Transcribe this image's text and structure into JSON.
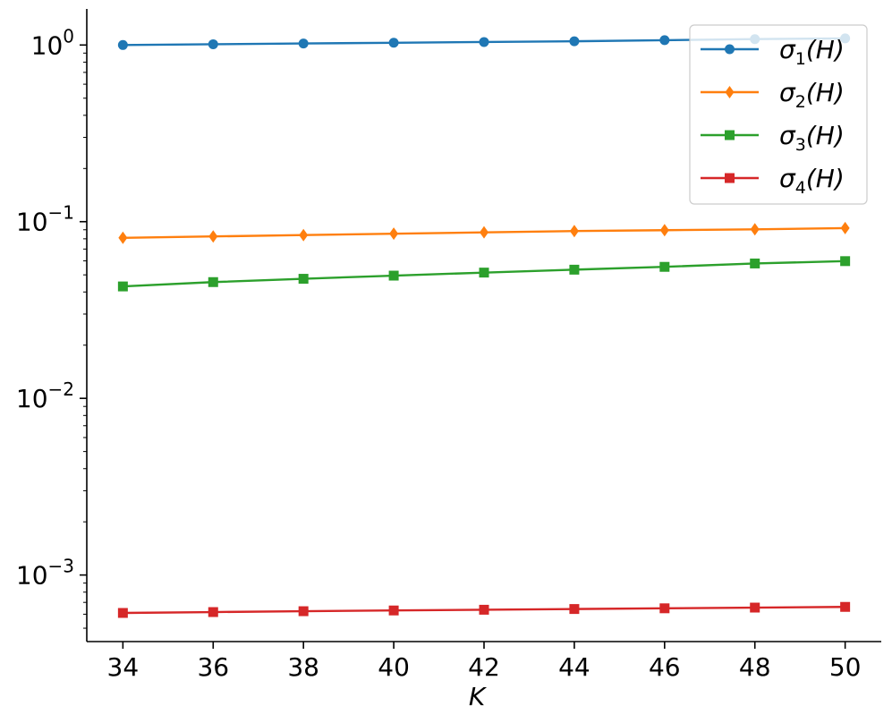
{
  "chart_data": {
    "type": "line",
    "title": "",
    "xlabel": "K",
    "ylabel": "",
    "x": [
      34,
      36,
      38,
      40,
      42,
      44,
      46,
      48,
      50
    ],
    "xlim": [
      33.2,
      50.8
    ],
    "ylim": [
      0.00042,
      1.6
    ],
    "yscale": "log",
    "xticks": [
      34,
      36,
      38,
      40,
      42,
      44,
      46,
      48,
      50
    ],
    "yticks": [
      {
        "value": 1,
        "base": "10",
        "exp": "0"
      },
      {
        "value": 0.1,
        "base": "10",
        "exp": "−1"
      },
      {
        "value": 0.01,
        "base": "10",
        "exp": "−2"
      },
      {
        "value": 0.001,
        "base": "10",
        "exp": "−3"
      }
    ],
    "grid": false,
    "legend_position": "top-right",
    "series": [
      {
        "name_symbol": "σ",
        "name_sub": "1",
        "name_arg": "(H)",
        "color": "#1f77b4",
        "marker": "circle",
        "values": [
          1.0,
          1.01,
          1.02,
          1.03,
          1.04,
          1.05,
          1.065,
          1.08,
          1.09
        ]
      },
      {
        "name_symbol": "σ",
        "name_sub": "2",
        "name_arg": "(H)",
        "color": "#ff7f0e",
        "marker": "diamond",
        "values": [
          0.081,
          0.0825,
          0.084,
          0.0855,
          0.087,
          0.0885,
          0.0895,
          0.0905,
          0.092
        ]
      },
      {
        "name_symbol": "σ",
        "name_sub": "3",
        "name_arg": "(H)",
        "color": "#2ca02c",
        "marker": "square",
        "values": [
          0.043,
          0.0455,
          0.0475,
          0.0495,
          0.0515,
          0.0535,
          0.0555,
          0.058,
          0.0598
        ]
      },
      {
        "name_symbol": "σ",
        "name_sub": "4",
        "name_arg": "(H)",
        "color": "#d62728",
        "marker": "square",
        "values": [
          0.00061,
          0.000617,
          0.000624,
          0.00063,
          0.000636,
          0.000642,
          0.000648,
          0.000654,
          0.00066
        ]
      }
    ]
  }
}
